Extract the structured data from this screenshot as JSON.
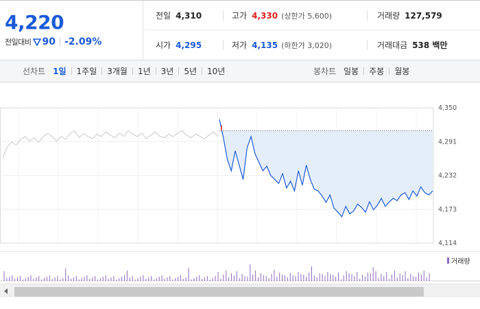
{
  "price": {
    "current": "4,220",
    "change_label": "전일대비",
    "change_value": "90",
    "change_direction": "down",
    "change_pct": "-2.09%"
  },
  "stats": {
    "prev_close": {
      "label": "전일",
      "value": "4,310"
    },
    "high": {
      "label": "고가",
      "value": "4,330",
      "extra": "(상한가 5,600)"
    },
    "volume": {
      "label": "거래량",
      "value": "127,579"
    },
    "open": {
      "label": "시가",
      "value": "4,295"
    },
    "low": {
      "label": "저가",
      "value": "4,135",
      "extra": "(하한가 3,020)"
    },
    "amount": {
      "label": "거래대금",
      "value": "538 백만"
    }
  },
  "tabs": {
    "line_label": "선차트",
    "line_tabs": [
      "1일",
      "1주일",
      "3개월",
      "1년",
      "3년",
      "5년",
      "10년"
    ],
    "line_active": 0,
    "candle_label": "봉차트",
    "candle_tabs": [
      "일봉",
      "주봉",
      "월봉"
    ]
  },
  "colors": {
    "up": "#e01e1e",
    "down": "#1a5ad8",
    "prev_day_line": "#c8c8c8",
    "fill": "#e4eefb",
    "volume": "#8d67c2"
  },
  "chart_data": {
    "type": "line",
    "ylim": [
      4114,
      4350
    ],
    "y_ticks": [
      "4,350",
      "4,291",
      "4,232",
      "4,173",
      "4,114"
    ],
    "reference_line": 4310,
    "legend": [
      "거래량"
    ],
    "series": [
      {
        "values": [
          4262,
          4282,
          4290,
          4285,
          4295,
          4300,
          4292,
          4298,
          4290,
          4300,
          4305,
          4300,
          4292,
          4300,
          4295,
          4305,
          4310,
          4298,
          4305,
          4300,
          4296,
          4304,
          4300,
          4308,
          4302,
          4298,
          4306,
          4300,
          4310,
          4304,
          4300,
          4306,
          4296,
          4302,
          4308,
          4300,
          4298,
          4304,
          4300,
          4306,
          4310,
          4302,
          4298,
          4304,
          4300,
          4296,
          4303,
          4308,
          4300
        ],
        "color": "#c8c8c8"
      },
      {
        "values": [
          4330,
          4298,
          4260,
          4240,
          4275,
          4250,
          4225,
          4280,
          4300,
          4270,
          4255,
          4240,
          4248,
          4232,
          4225,
          4218,
          4235,
          4210,
          4222,
          4205,
          4240,
          4215,
          4250,
          4225,
          4208,
          4205,
          4196,
          4185,
          4198,
          4175,
          4168,
          4160,
          4178,
          4165,
          4170,
          4182,
          4176,
          4168,
          4186,
          4172,
          4180,
          4192,
          4178,
          4186,
          4192,
          4188,
          4198,
          4202,
          4190,
          4205,
          4196,
          4212,
          4202,
          4198,
          4205
        ],
        "color": "#1a5ad8"
      }
    ]
  }
}
